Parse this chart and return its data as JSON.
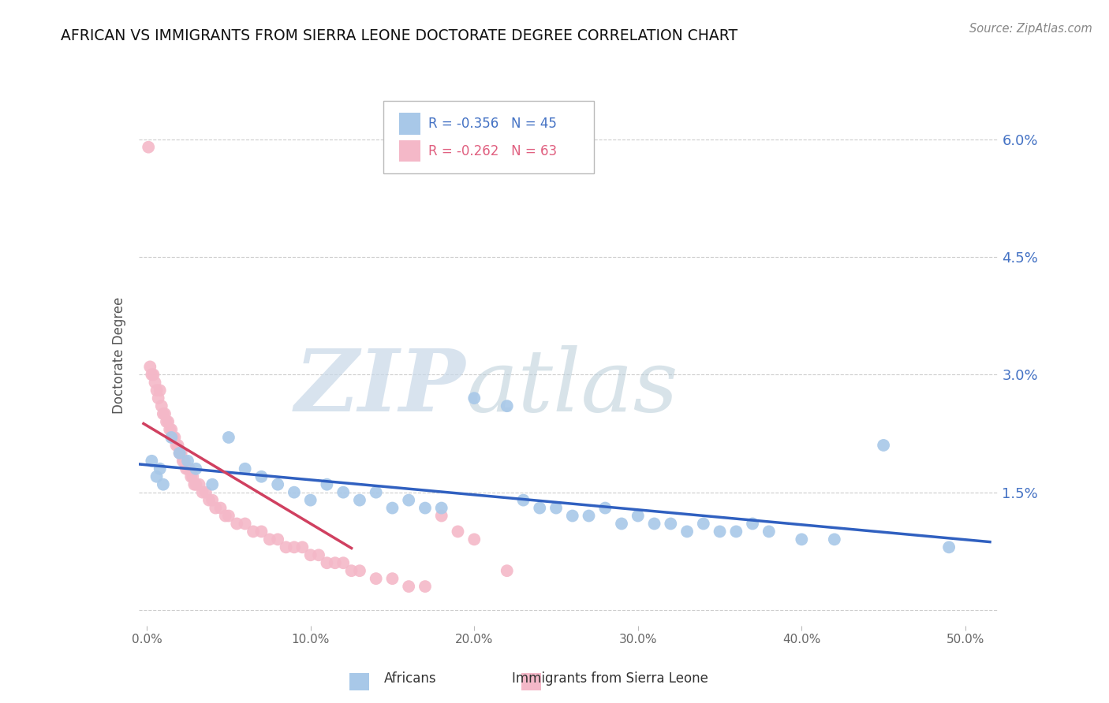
{
  "title": "AFRICAN VS IMMIGRANTS FROM SIERRA LEONE DOCTORATE DEGREE CORRELATION CHART",
  "source": "Source: ZipAtlas.com",
  "ylabel": "Doctorate Degree",
  "xlim": [
    -0.5,
    52.0
  ],
  "ylim": [
    -0.002,
    0.067
  ],
  "background_color": "#ffffff",
  "grid_color": "#cccccc",
  "watermark_zip": "ZIP",
  "watermark_atlas": "atlas",
  "african_color": "#a8c8e8",
  "sierra_leone_color": "#f4b8c8",
  "african_line_color": "#3060c0",
  "sierra_leone_line_color": "#d04060",
  "legend_blue_color": "#4472c4",
  "legend_pink_color": "#e06080",
  "R_african": -0.356,
  "N_african": 45,
  "R_sierra": -0.262,
  "N_sierra": 63,
  "africans_x": [
    0.3,
    0.6,
    0.8,
    1.0,
    1.5,
    2.0,
    2.5,
    3.0,
    4.0,
    5.0,
    6.0,
    7.0,
    8.0,
    9.0,
    10.0,
    11.0,
    12.0,
    13.0,
    14.0,
    15.0,
    16.0,
    17.0,
    18.0,
    20.0,
    22.0,
    23.0,
    24.0,
    25.0,
    26.0,
    27.0,
    28.0,
    29.0,
    30.0,
    31.0,
    32.0,
    33.0,
    34.0,
    35.0,
    36.0,
    37.0,
    38.0,
    40.0,
    42.0,
    45.0,
    49.0
  ],
  "africans_y": [
    0.019,
    0.017,
    0.018,
    0.016,
    0.022,
    0.02,
    0.019,
    0.018,
    0.016,
    0.022,
    0.018,
    0.017,
    0.016,
    0.015,
    0.014,
    0.016,
    0.015,
    0.014,
    0.015,
    0.013,
    0.014,
    0.013,
    0.013,
    0.027,
    0.026,
    0.014,
    0.013,
    0.013,
    0.012,
    0.012,
    0.013,
    0.011,
    0.012,
    0.011,
    0.011,
    0.01,
    0.011,
    0.01,
    0.01,
    0.011,
    0.01,
    0.009,
    0.009,
    0.021,
    0.008
  ],
  "sierra_x": [
    0.1,
    0.2,
    0.3,
    0.4,
    0.5,
    0.6,
    0.7,
    0.8,
    0.9,
    1.0,
    1.1,
    1.2,
    1.3,
    1.4,
    1.5,
    1.6,
    1.7,
    1.8,
    1.9,
    2.0,
    2.1,
    2.2,
    2.3,
    2.4,
    2.5,
    2.6,
    2.7,
    2.8,
    2.9,
    3.0,
    3.2,
    3.4,
    3.6,
    3.8,
    4.0,
    4.2,
    4.5,
    4.8,
    5.0,
    5.5,
    6.0,
    6.5,
    7.0,
    7.5,
    8.0,
    8.5,
    9.0,
    9.5,
    10.0,
    10.5,
    11.0,
    11.5,
    12.0,
    12.5,
    13.0,
    14.0,
    15.0,
    16.0,
    17.0,
    18.0,
    19.0,
    20.0,
    22.0
  ],
  "sierra_y": [
    0.059,
    0.031,
    0.03,
    0.03,
    0.029,
    0.028,
    0.027,
    0.028,
    0.026,
    0.025,
    0.025,
    0.024,
    0.024,
    0.023,
    0.023,
    0.022,
    0.022,
    0.021,
    0.021,
    0.02,
    0.02,
    0.019,
    0.019,
    0.018,
    0.018,
    0.018,
    0.017,
    0.017,
    0.016,
    0.016,
    0.016,
    0.015,
    0.015,
    0.014,
    0.014,
    0.013,
    0.013,
    0.012,
    0.012,
    0.011,
    0.011,
    0.01,
    0.01,
    0.009,
    0.009,
    0.008,
    0.008,
    0.008,
    0.007,
    0.007,
    0.006,
    0.006,
    0.006,
    0.005,
    0.005,
    0.004,
    0.004,
    0.003,
    0.003,
    0.012,
    0.01,
    0.009,
    0.005
  ]
}
